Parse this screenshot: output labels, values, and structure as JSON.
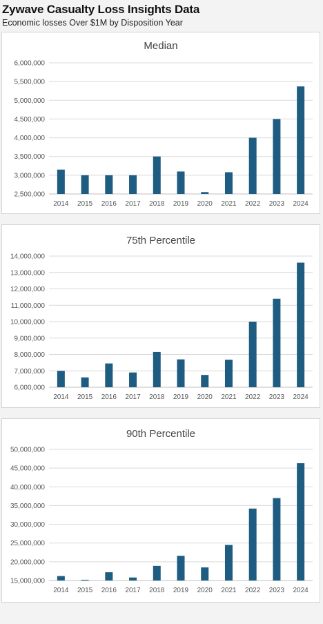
{
  "header": {
    "title": "Zywave Casualty Loss Insights Data",
    "subtitle": "Economic losses Over $1M by Disposition Year"
  },
  "colors": {
    "bar": "#1f5c82",
    "panel": "#ffffff",
    "background": "#f3f3f3"
  },
  "chart_data": [
    {
      "type": "bar",
      "title": "Median",
      "categories": [
        "2014",
        "2015",
        "2016",
        "2017",
        "2018",
        "2019",
        "2020",
        "2021",
        "2022",
        "2023",
        "2024"
      ],
      "values": [
        3150000,
        3000000,
        3000000,
        3000000,
        3500000,
        3100000,
        2550000,
        3080000,
        4000000,
        4500000,
        5370000
      ],
      "ylim": [
        2500000,
        6000000
      ],
      "yticks": [
        2500000,
        3000000,
        3500000,
        4000000,
        4500000,
        5000000,
        5500000,
        6000000
      ],
      "ytick_labels": [
        "2,500,000",
        "3,000,000",
        "3,500,000",
        "4,000,000",
        "4,500,000",
        "5,000,000",
        "5,500,000",
        "6,000,000"
      ],
      "grid": true
    },
    {
      "type": "bar",
      "title": "75th Percentile",
      "categories": [
        "2014",
        "2015",
        "2016",
        "2017",
        "2018",
        "2019",
        "2020",
        "2021",
        "2022",
        "2023",
        "2024"
      ],
      "values": [
        7000000,
        6600000,
        7450000,
        6900000,
        8150000,
        7700000,
        6750000,
        7680000,
        10000000,
        11400000,
        13600000
      ],
      "ylim": [
        6000000,
        14000000
      ],
      "yticks": [
        6000000,
        7000000,
        8000000,
        9000000,
        10000000,
        11000000,
        12000000,
        13000000,
        14000000
      ],
      "ytick_labels": [
        "6,000,000",
        "7,000,000",
        "8,000,000",
        "9,000,000",
        "10,000,000",
        "11,000,000",
        "12,000,000",
        "13,000,000",
        "14,000,000"
      ],
      "grid": true
    },
    {
      "type": "bar",
      "title": "90th Percentile",
      "categories": [
        "2014",
        "2015",
        "2016",
        "2017",
        "2018",
        "2019",
        "2020",
        "2021",
        "2022",
        "2023",
        "2024"
      ],
      "values": [
        16200000,
        15200000,
        17200000,
        15800000,
        18900000,
        21600000,
        18500000,
        24500000,
        34200000,
        37000000,
        46300000
      ],
      "ylim": [
        15000000,
        50000000
      ],
      "yticks": [
        15000000,
        20000000,
        25000000,
        30000000,
        35000000,
        40000000,
        45000000,
        50000000
      ],
      "ytick_labels": [
        "15,000,000",
        "20,000,000",
        "25,000,000",
        "30,000,000",
        "35,000,000",
        "40,000,000",
        "45,000,000",
        "50,000,000"
      ],
      "grid": true
    }
  ]
}
